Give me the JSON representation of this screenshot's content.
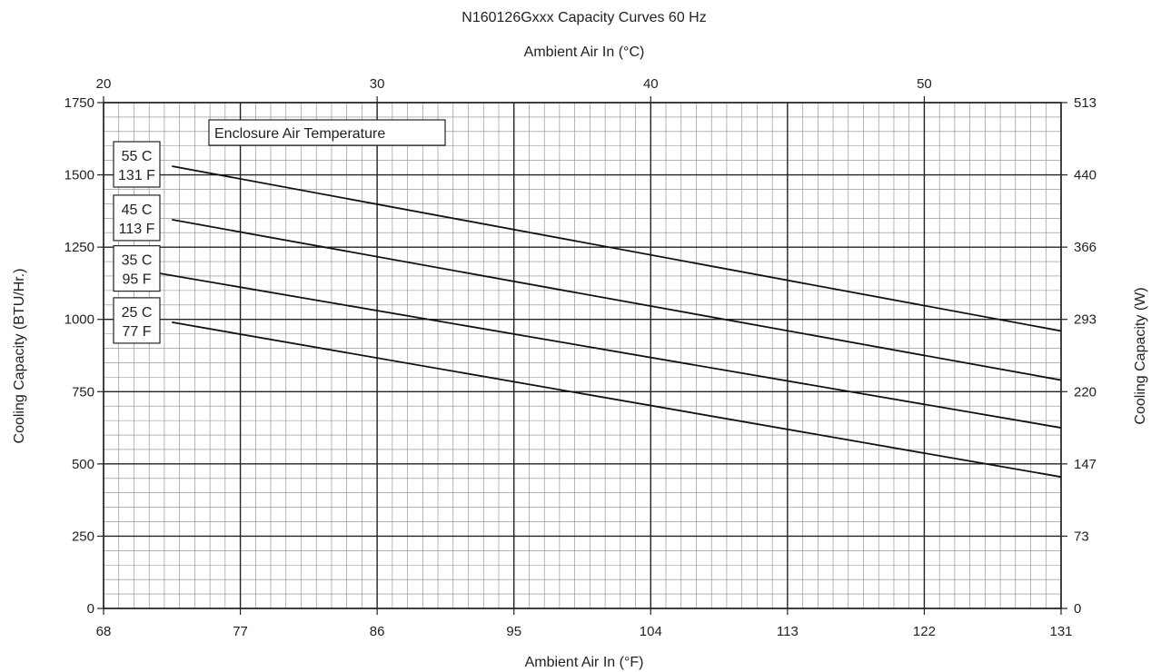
{
  "chart_data": {
    "type": "line",
    "title": "N160126Gxxx Capacity Curves 60 Hz",
    "x_bottom": {
      "label": "Ambient Air In (°F)",
      "range": [
        68,
        131
      ],
      "ticks": [
        "68",
        "77",
        "86",
        "95",
        "104",
        "113",
        "122",
        "131"
      ]
    },
    "x_top": {
      "label": "Ambient Air In (°C)",
      "ticks": [
        "20",
        "30",
        "40",
        "50"
      ]
    },
    "y_left": {
      "label": "Cooling Capacity (BTU/Hr.)",
      "range": [
        0,
        1750
      ],
      "ticks": [
        "0",
        "250",
        "500",
        "750",
        "1000",
        "1250",
        "1500",
        "1750"
      ]
    },
    "y_right": {
      "label": "Cooling Capacity (W)",
      "ticks": [
        "0",
        "73",
        "147",
        "220",
        "293",
        "366",
        "440",
        "513"
      ]
    },
    "grid": true,
    "legend_title": "Enclosure Air Temperature",
    "series": [
      {
        "name": "55 C\n131 F",
        "name_c": "55 C",
        "name_f": "131 F",
        "x": [
          72.5,
          131
        ],
        "y": [
          1530,
          960
        ]
      },
      {
        "name": "45 C\n113 F",
        "name_c": "45 C",
        "name_f": "113 F",
        "x": [
          72.5,
          131
        ],
        "y": [
          1345,
          790
        ]
      },
      {
        "name": "35 C\n95 F",
        "name_c": "35 C",
        "name_f": "95 F",
        "x": [
          70.5,
          131
        ],
        "y": [
          1170,
          625
        ]
      },
      {
        "name": "25 C\n77 F",
        "name_c": "25 C",
        "name_f": "77 F",
        "x": [
          72.5,
          131
        ],
        "y": [
          990,
          455
        ]
      }
    ]
  }
}
